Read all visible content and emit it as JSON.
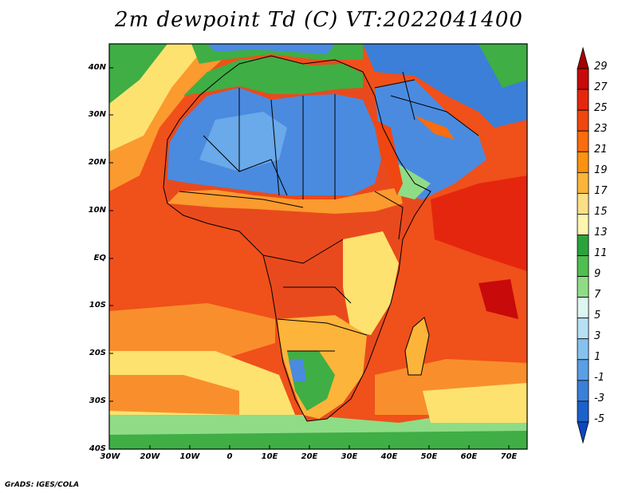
{
  "title": "2m dewpoint Td (C) VT:2022041400",
  "credit": "GrADS: IGES/COLA",
  "lat_labels": [
    "40N",
    "30N",
    "20N",
    "10N",
    "EQ",
    "10S",
    "20S",
    "30S",
    "40S"
  ],
  "lon_labels": [
    "30W",
    "20W",
    "10W",
    "0",
    "10E",
    "20E",
    "30E",
    "40E",
    "50E",
    "60E",
    "70E"
  ],
  "colorbar": {
    "labels": [
      "29",
      "27",
      "25",
      "23",
      "21",
      "19",
      "17",
      "15",
      "13",
      "11",
      "9",
      "7",
      "5",
      "3",
      "1",
      "-1",
      "-3",
      "-5"
    ],
    "colors": [
      "#a50000",
      "#c80a0a",
      "#e5260e",
      "#f04610",
      "#f96c0f",
      "#fb9211",
      "#fcb43a",
      "#fde085",
      "#fef5b0",
      "#2ba33d",
      "#4fbf50",
      "#8fdc87",
      "#dcf7f0",
      "#b7e0f5",
      "#86c2ef",
      "#5a9fe4",
      "#3b7fd8",
      "#1c60cc",
      "#0b47bf"
    ]
  },
  "colors": {
    "ocean_warm": "#f0501a",
    "ocean_mid": "#f98f2c",
    "ocean_cool": "#fde26f",
    "land_dry": "#4a8be0",
    "land_green": "#3fae45",
    "land_humid": "#e94a1d",
    "border": "#000000"
  }
}
